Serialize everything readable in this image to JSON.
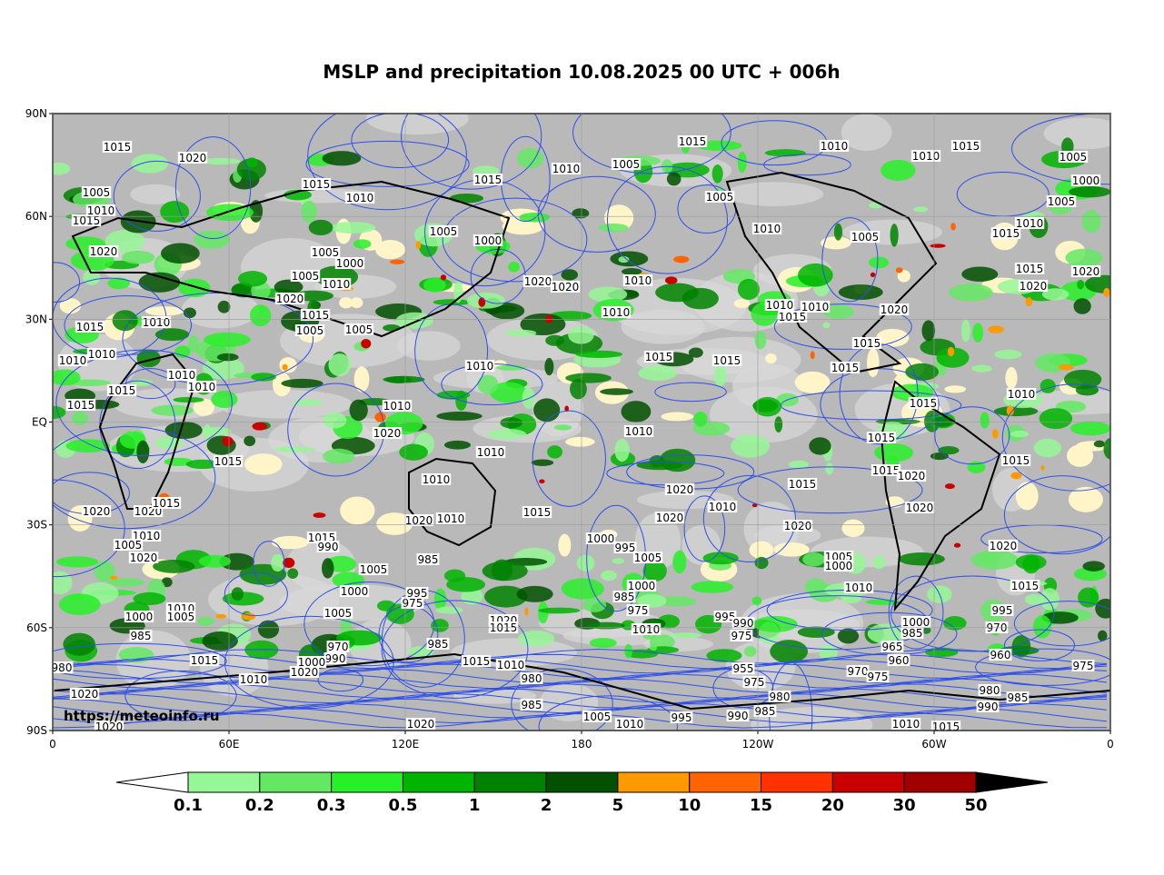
{
  "title": "MSLP and precipitation 10.08.2025 00 UTC + 006h",
  "map": {
    "lat_labels": [
      "90N",
      "60N",
      "30N",
      "EQ",
      "30S",
      "60S",
      "90S"
    ],
    "lon_labels": [
      "0",
      "60E",
      "120E",
      "180",
      "120W",
      "60W",
      "0"
    ],
    "watermark": "https://meteoinfo.ru",
    "isobar_labels": [
      1015,
      1020,
      1005,
      1010,
      1015,
      1020,
      1015,
      1010,
      1015,
      1010,
      1005,
      1015,
      1010,
      1010,
      1015,
      1005,
      1000,
      1005,
      1005,
      1010,
      1005,
      1010,
      1015,
      1015,
      1020,
      1020,
      1005,
      1000,
      1005,
      1000,
      1010,
      1005,
      1020,
      1015,
      1005,
      1005,
      1010,
      1015,
      1010,
      1010,
      1015,
      1015,
      1010,
      1010,
      1020,
      1020,
      1010,
      1010,
      1010,
      1015,
      1015,
      1010,
      1015,
      1010,
      1020,
      1015,
      1015,
      1015,
      1010,
      1010,
      1020,
      1010,
      1010,
      1015,
      1015,
      1020,
      1015,
      1015,
      1010,
      1020,
      1010,
      1015,
      1020,
      1010,
      1020,
      1015,
      1020,
      1020,
      1020,
      1020,
      1015,
      1010,
      1005,
      1020,
      1015,
      990,
      1005,
      985,
      1000,
      995,
      975,
      1005,
      1000,
      995,
      1005,
      1000,
      985,
      975,
      1010,
      1005,
      1000,
      1010,
      1020,
      1015,
      1000,
      1010,
      1005,
      985,
      1020,
      1015,
      995,
      990,
      975,
      1000,
      985,
      995,
      970,
      960,
      965,
      960,
      970,
      975,
      975,
      985,
      1015,
      1010,
      980,
      970,
      990,
      1000,
      1020,
      1010,
      1015,
      955,
      975,
      980,
      985,
      990,
      995,
      1005,
      1010,
      1020,
      985,
      1020,
      1020,
      980,
      990,
      980,
      985,
      1010,
      1015
    ]
  },
  "colorbar": {
    "labels": [
      0.1,
      0.2,
      0.3,
      0.5,
      1,
      2,
      5,
      10,
      15,
      20,
      30,
      50
    ],
    "colors": [
      "#96f796",
      "#64e864",
      "#28f028",
      "#00b400",
      "#008200",
      "#005000",
      "#ff9900",
      "#ff6400",
      "#ff3200",
      "#c80000",
      "#a00000"
    ],
    "under_color": "#ffffff",
    "over_color": "#000000"
  }
}
